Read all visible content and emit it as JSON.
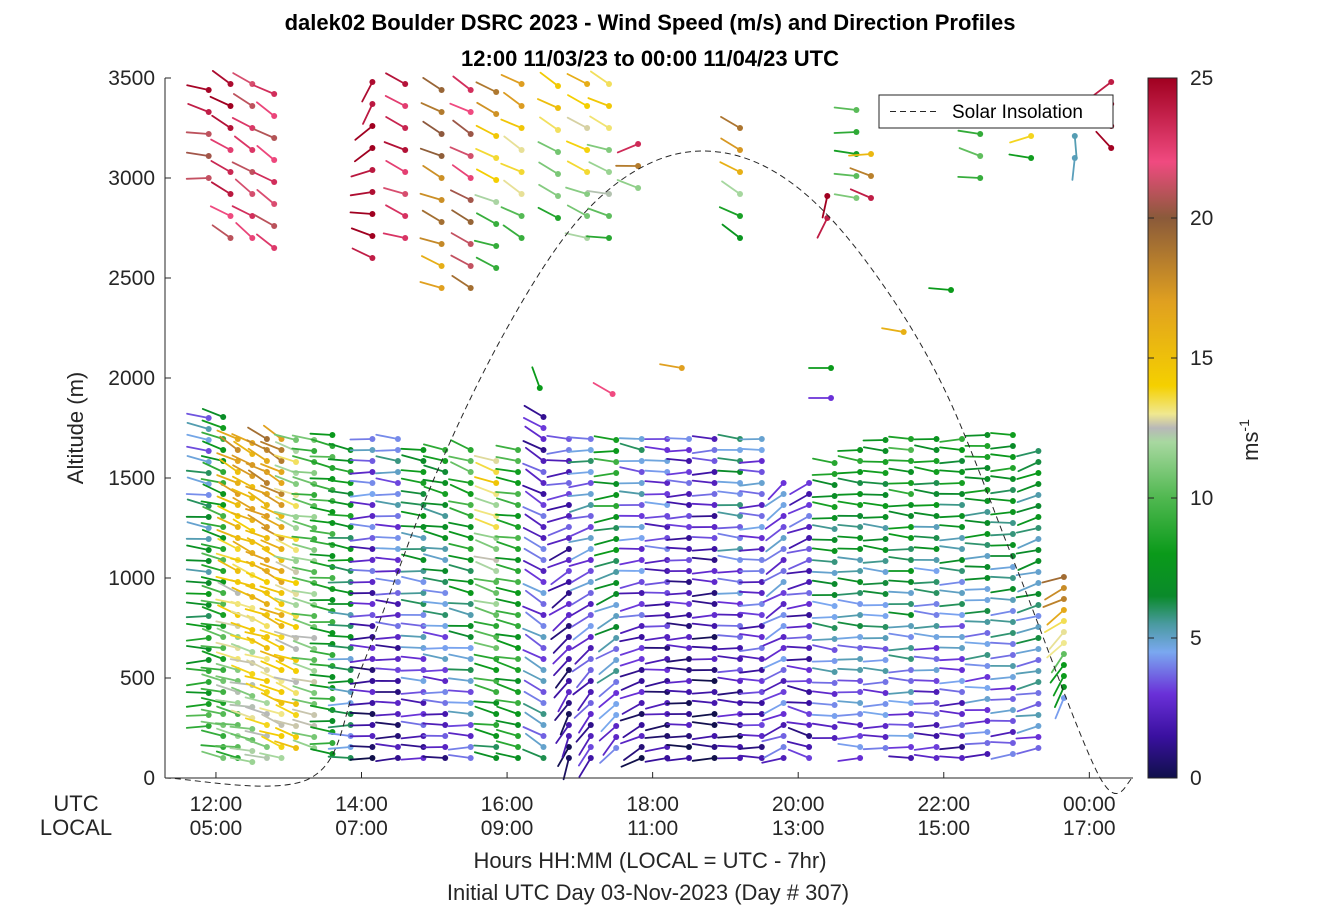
{
  "chart_data": {
    "type": "wind-barb-profile",
    "title": "dalek02 Boulder DSRC 2023 - Wind Speed (m/s) and Direction Profiles",
    "subtitle": "12:00 11/03/23 to 00:00 11/04/23  UTC",
    "ylabel": "Altitude (m)",
    "xlabel": "Hours HH:MM  (LOCAL = UTC - 7hr)",
    "xlabel2": "Initial UTC Day 03-Nov-2023 (Day # 307)",
    "x_row_labels": [
      "UTC",
      "LOCAL"
    ],
    "ylim": [
      0,
      3500
    ],
    "xlim_hours_utc": [
      11.3,
      24.6
    ],
    "y_ticks": [
      {
        "value": 0,
        "label": "0"
      },
      {
        "value": 500,
        "label": "500"
      },
      {
        "value": 1000,
        "label": "1000"
      },
      {
        "value": 1500,
        "label": "1500"
      },
      {
        "value": 2000,
        "label": "2000"
      },
      {
        "value": 2500,
        "label": "2500"
      },
      {
        "value": 3000,
        "label": "3000"
      },
      {
        "value": 3500,
        "label": "3500"
      }
    ],
    "x_ticks": [
      {
        "value": 12,
        "utc": "12:00",
        "local": "05:00"
      },
      {
        "value": 14,
        "utc": "14:00",
        "local": "07:00"
      },
      {
        "value": 16,
        "utc": "16:00",
        "local": "09:00"
      },
      {
        "value": 18,
        "utc": "18:00",
        "local": "11:00"
      },
      {
        "value": 20,
        "utc": "20:00",
        "local": "13:00"
      },
      {
        "value": 22,
        "utc": "22:00",
        "local": "15:00"
      },
      {
        "value": 24,
        "utc": "00:00",
        "local": "17:00"
      }
    ],
    "colorbar": {
      "label": "ms",
      "label_superscript": "-1",
      "range": [
        0,
        25
      ],
      "ticks": [
        {
          "value": 0,
          "label": "0"
        },
        {
          "value": 5,
          "label": "5"
        },
        {
          "value": 10,
          "label": "10"
        },
        {
          "value": 15,
          "label": "15"
        },
        {
          "value": 20,
          "label": "20"
        },
        {
          "value": 25,
          "label": "25"
        }
      ],
      "stops": [
        {
          "v": 0,
          "c": "#10104a"
        },
        {
          "v": 1.5,
          "c": "#3a10a0"
        },
        {
          "v": 3,
          "c": "#6a30d8"
        },
        {
          "v": 4.5,
          "c": "#7aa8f0"
        },
        {
          "v": 5.5,
          "c": "#4a9aa0"
        },
        {
          "v": 6.5,
          "c": "#0a8a2a"
        },
        {
          "v": 8,
          "c": "#0a9a1a"
        },
        {
          "v": 10,
          "c": "#50b850"
        },
        {
          "v": 12,
          "c": "#a8d8a0"
        },
        {
          "v": 12.5,
          "c": "#b8b8b8"
        },
        {
          "v": 13,
          "c": "#f0e890"
        },
        {
          "v": 14,
          "c": "#f5d000"
        },
        {
          "v": 17,
          "c": "#e0a020"
        },
        {
          "v": 20,
          "c": "#8a5a3a"
        },
        {
          "v": 22,
          "c": "#f04a80"
        },
        {
          "v": 25,
          "c": "#a00020"
        }
      ]
    },
    "legend": {
      "entries": [
        "Solar Insolation"
      ],
      "placement": "top-right"
    },
    "solar_insolation": {
      "style": "dashed",
      "x_hours_utc": [
        11.3,
        13.3,
        14,
        15,
        16,
        17,
        18,
        19,
        20,
        21,
        22,
        23,
        24.15,
        24.6
      ],
      "altitude_equiv_m": [
        0,
        0,
        550,
        1500,
        2250,
        2800,
        3080,
        3125,
        2950,
        2550,
        1950,
        1050,
        0,
        0
      ]
    },
    "profiles_note": "Each profile column: hour (UTC), lowest and highest gate altitude (m), gate spacing (m), speed (m/s) at bottom and top, and direction (deg, meteorological) at bottom and top; values estimated from the plot.",
    "profiles": [
      {
        "hour": 11.9,
        "z0": 260,
        "z1": 1800,
        "dz": 55,
        "s0": 9,
        "s1": 4,
        "d0": 265,
        "d1": 285
      },
      {
        "hour": 12.1,
        "z0": 100,
        "z1": 1780,
        "dz": 55,
        "s0": 10,
        "s1": 8,
        "d0": 280,
        "d1": 290
      },
      {
        "hour": 12.3,
        "z0": 100,
        "z1": 1720,
        "dz": 55,
        "s0": 10,
        "s1": 17,
        "d0": 280,
        "d1": 300
      },
      {
        "hour": 12.5,
        "z0": 80,
        "z1": 1700,
        "dz": 55,
        "s0": 11,
        "s1": 17,
        "d0": 280,
        "d1": 300
      },
      {
        "hour": 12.7,
        "z0": 100,
        "z1": 1700,
        "dz": 55,
        "s0": 12,
        "s1": 18,
        "d0": 285,
        "d1": 300
      },
      {
        "hour": 12.9,
        "z0": 100,
        "z1": 1700,
        "dz": 55,
        "s0": 13,
        "s1": 18,
        "d0": 290,
        "d1": 300
      },
      {
        "hour": 13.1,
        "z0": 150,
        "z1": 1700,
        "dz": 55,
        "s0": 14,
        "s1": 12,
        "d0": 290,
        "d1": 290
      },
      {
        "hour": 13.35,
        "z0": 150,
        "z1": 1700,
        "dz": 55,
        "s0": 12,
        "s1": 10,
        "d0": 285,
        "d1": 280
      },
      {
        "hour": 13.6,
        "z0": 120,
        "z1": 1700,
        "dz": 55,
        "s0": 8,
        "s1": 9,
        "d0": 275,
        "d1": 280
      },
      {
        "hour": 13.85,
        "z0": 100,
        "z1": 1650,
        "dz": 55,
        "s0": 5,
        "s1": 8,
        "d0": 270,
        "d1": 280
      },
      {
        "hour": 14.15,
        "z0": 100,
        "z1": 1680,
        "dz": 55,
        "s0": 1,
        "s1": 4,
        "d0": 270,
        "d1": 270
      },
      {
        "hour": 14.5,
        "z0": 100,
        "z1": 1700,
        "dz": 55,
        "s0": 1,
        "s1": 5,
        "d0": 270,
        "d1": 275
      },
      {
        "hour": 14.85,
        "z0": 100,
        "z1": 1650,
        "dz": 55,
        "s0": 2,
        "s1": 8,
        "d0": 270,
        "d1": 280
      },
      {
        "hour": 15.15,
        "z0": 100,
        "z1": 1650,
        "dz": 55,
        "s0": 2,
        "s1": 8,
        "d0": 270,
        "d1": 285
      },
      {
        "hour": 15.5,
        "z0": 100,
        "z1": 1650,
        "dz": 55,
        "s0": 3,
        "s1": 10,
        "d0": 270,
        "d1": 290
      },
      {
        "hour": 15.85,
        "z0": 100,
        "z1": 1600,
        "dz": 55,
        "s0": 7,
        "s1": 14,
        "d0": 280,
        "d1": 290
      },
      {
        "hour": 16.15,
        "z0": 100,
        "z1": 1650,
        "dz": 55,
        "s0": 8,
        "s1": 9,
        "d0": 285,
        "d1": 280
      },
      {
        "hour": 16.5,
        "z0": 100,
        "z1": 1800,
        "dz": 55,
        "s0": 5,
        "s1": 2,
        "d0": 300,
        "d1": 300
      },
      {
        "hour": 16.85,
        "z0": 100,
        "z1": 1700,
        "dz": 55,
        "s0": 1,
        "s1": 3,
        "d0": 200,
        "d1": 270
      },
      {
        "hour": 17.15,
        "z0": 100,
        "z1": 1700,
        "dz": 55,
        "s0": 2,
        "s1": 5,
        "d0": 210,
        "d1": 270
      },
      {
        "hour": 17.5,
        "z0": 150,
        "z1": 1700,
        "dz": 55,
        "s0": 3,
        "s1": 9,
        "d0": 220,
        "d1": 275
      },
      {
        "hour": 17.85,
        "z0": 100,
        "z1": 1720,
        "dz": 55,
        "s0": 1,
        "s1": 5,
        "d0": 240,
        "d1": 280
      },
      {
        "hour": 18.2,
        "z0": 100,
        "z1": 1720,
        "dz": 55,
        "s0": 1,
        "s1": 4,
        "d0": 260,
        "d1": 275
      },
      {
        "hour": 18.5,
        "z0": 100,
        "z1": 1720,
        "dz": 55,
        "s0": 1,
        "s1": 3,
        "d0": 270,
        "d1": 270
      },
      {
        "hour": 18.85,
        "z0": 100,
        "z1": 1700,
        "dz": 55,
        "s0": 0.5,
        "s1": 3,
        "d0": 270,
        "d1": 270
      },
      {
        "hour": 19.2,
        "z0": 100,
        "z1": 1700,
        "dz": 55,
        "s0": 1,
        "s1": 6,
        "d0": 270,
        "d1": 275
      },
      {
        "hour": 19.5,
        "z0": 100,
        "z1": 1700,
        "dz": 55,
        "s0": 2,
        "s1": 4,
        "d0": 270,
        "d1": 270
      },
      {
        "hour": 19.8,
        "z0": 100,
        "z1": 1450,
        "dz": 55,
        "s0": 3,
        "s1": 4,
        "d0": 250,
        "d1": 230
      },
      {
        "hour": 20.15,
        "z0": 100,
        "z1": 1500,
        "dz": 55,
        "s0": 2,
        "s1": 3,
        "d0": 290,
        "d1": 240
      },
      {
        "hour": 20.5,
        "z0": 200,
        "z1": 1600,
        "dz": 55,
        "s0": 3,
        "s1": 8,
        "d0": 275,
        "d1": 275
      },
      {
        "hour": 20.85,
        "z0": 100,
        "z1": 1650,
        "dz": 55,
        "s0": 3,
        "s1": 8,
        "d0": 270,
        "d1": 275
      },
      {
        "hour": 21.2,
        "z0": 150,
        "z1": 1700,
        "dz": 55,
        "s0": 3,
        "s1": 8,
        "d0": 270,
        "d1": 275
      },
      {
        "hour": 21.55,
        "z0": 100,
        "z1": 1700,
        "dz": 55,
        "s0": 3,
        "s1": 9,
        "d0": 270,
        "d1": 275
      },
      {
        "hour": 21.9,
        "z0": 100,
        "z1": 1700,
        "dz": 55,
        "s0": 2,
        "s1": 8,
        "d0": 270,
        "d1": 275
      },
      {
        "hour": 22.25,
        "z0": 100,
        "z1": 1700,
        "dz": 55,
        "s0": 2,
        "s1": 8,
        "d0": 270,
        "d1": 270
      },
      {
        "hour": 22.6,
        "z0": 120,
        "z1": 1700,
        "dz": 55,
        "s0": 3,
        "s1": 8,
        "d0": 265,
        "d1": 270
      },
      {
        "hour": 22.95,
        "z0": 120,
        "z1": 1700,
        "dz": 55,
        "s0": 3,
        "s1": 8,
        "d0": 265,
        "d1": 270
      },
      {
        "hour": 23.3,
        "z0": 150,
        "z1": 1620,
        "dz": 55,
        "s0": 4,
        "s1": 7,
        "d0": 260,
        "d1": 250
      },
      {
        "hour": 23.65,
        "z0": 400,
        "z1": 1020,
        "dz": 55,
        "s0": 5,
        "s1": 20,
        "d0": 200,
        "d1": 250
      }
    ],
    "upper_profiles": [
      {
        "hour": 11.9,
        "z0": 3000,
        "z1": 3450,
        "dz": 110,
        "s0": 20,
        "s1": 24,
        "d0": 270,
        "d1": 290
      },
      {
        "hour": 12.2,
        "z0": 2700,
        "z1": 3450,
        "dz": 110,
        "s0": 22,
        "s1": 25,
        "d0": 300,
        "d1": 300
      },
      {
        "hour": 12.5,
        "z0": 2700,
        "z1": 3450,
        "dz": 110,
        "s0": 22,
        "s1": 22,
        "d0": 305,
        "d1": 300
      },
      {
        "hour": 12.8,
        "z0": 2650,
        "z1": 3450,
        "dz": 110,
        "s0": 22,
        "s1": 22,
        "d0": 305,
        "d1": 300
      },
      {
        "hour": 14.15,
        "z0": 2600,
        "z1": 3450,
        "dz": 110,
        "s0": 25,
        "s1": 25,
        "d0": 300,
        "d1": 200
      },
      {
        "hour": 14.6,
        "z0": 2700,
        "z1": 3450,
        "dz": 110,
        "s0": 22,
        "s1": 24,
        "d0": 290,
        "d1": 300
      },
      {
        "hour": 15.1,
        "z0": 2450,
        "z1": 3450,
        "dz": 110,
        "s0": 17,
        "s1": 20,
        "d0": 290,
        "d1": 300
      },
      {
        "hour": 15.5,
        "z0": 2450,
        "z1": 3450,
        "dz": 110,
        "s0": 20,
        "s1": 22,
        "d0": 300,
        "d1": 300
      },
      {
        "hour": 15.85,
        "z0": 2550,
        "z1": 3450,
        "dz": 110,
        "s0": 8,
        "s1": 18,
        "d0": 290,
        "d1": 300
      },
      {
        "hour": 16.2,
        "z0": 2700,
        "z1": 3450,
        "dz": 110,
        "s0": 10,
        "s1": 17,
        "d0": 300,
        "d1": 300
      },
      {
        "hour": 16.7,
        "z0": 2800,
        "z1": 3450,
        "dz": 110,
        "s0": 9,
        "s1": 15,
        "d0": 300,
        "d1": 300
      },
      {
        "hour": 17.1,
        "z0": 2700,
        "z1": 3450,
        "dz": 110,
        "s0": 11,
        "s1": 15,
        "d0": 290,
        "d1": 300
      },
      {
        "hour": 17.4,
        "z0": 2700,
        "z1": 3450,
        "dz": 110,
        "s0": 10,
        "s1": 14,
        "d0": 280,
        "d1": 300
      },
      {
        "hour": 17.8,
        "z0": 2950,
        "z1": 3150,
        "dz": 110,
        "s0": 11,
        "s1": 24,
        "d0": 290,
        "d1": 250
      },
      {
        "hour": 19.2,
        "z0": 2700,
        "z1": 3200,
        "dz": 110,
        "s0": 7,
        "s1": 20,
        "d0": 300,
        "d1": 300
      },
      {
        "hour": 20.4,
        "z0": 2800,
        "z1": 2850,
        "dz": 110,
        "s0": 25,
        "s1": 25,
        "d0": 200,
        "d1": 200
      },
      {
        "hour": 20.8,
        "z0": 2900,
        "z1": 3350,
        "dz": 110,
        "s0": 10,
        "s1": 9,
        "d0": 280,
        "d1": 270
      },
      {
        "hour": 21.0,
        "z0": 2900,
        "z1": 3150,
        "dz": 110,
        "s0": 24,
        "s1": 15,
        "d0": 300,
        "d1": 270
      },
      {
        "hour": 22.5,
        "z0": 3000,
        "z1": 3350,
        "dz": 110,
        "s0": 10,
        "s1": 8,
        "d0": 280,
        "d1": 290
      },
      {
        "hour": 23.2,
        "z0": 3100,
        "z1": 3200,
        "dz": 110,
        "s0": 7,
        "s1": 14,
        "d0": 280,
        "d1": 250
      },
      {
        "hour": 23.8,
        "z0": 3100,
        "z1": 3200,
        "dz": 110,
        "s0": 6,
        "s1": 6,
        "d0": 180,
        "d1": 180
      },
      {
        "hour": 24.3,
        "z0": 3150,
        "z1": 3450,
        "dz": 110,
        "s0": 25,
        "s1": 25,
        "d0": 310,
        "d1": 240
      }
    ],
    "extra_points": [
      {
        "hour": 16.45,
        "z": 1950,
        "s": 8,
        "d": 340
      },
      {
        "hour": 17.45,
        "z": 1920,
        "s": 22,
        "d": 300
      },
      {
        "hour": 18.4,
        "z": 2050,
        "s": 17,
        "d": 280
      },
      {
        "hour": 20.45,
        "z": 2050,
        "s": 8,
        "d": 270
      },
      {
        "hour": 20.45,
        "z": 1900,
        "s": 3,
        "d": 270
      },
      {
        "hour": 21.45,
        "z": 2230,
        "s": 16,
        "d": 280
      },
      {
        "hour": 22.1,
        "z": 2440,
        "s": 8,
        "d": 275
      }
    ]
  }
}
